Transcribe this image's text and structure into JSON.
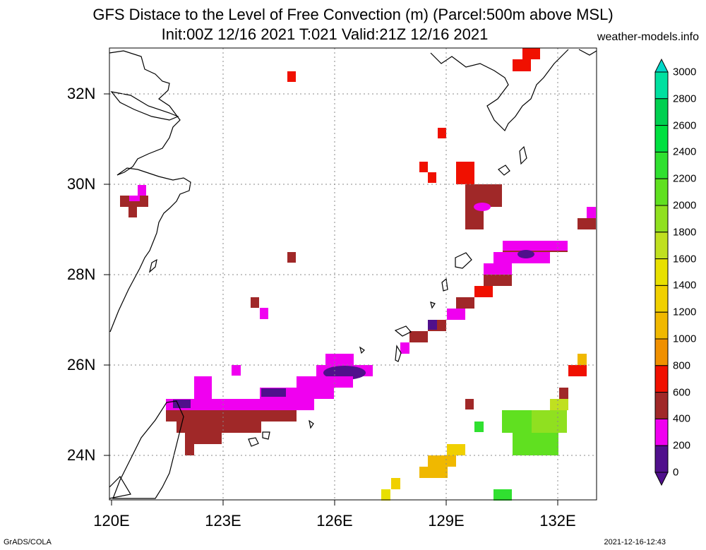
{
  "header": {
    "title_line1": "GFS Distace to the Level of Free Convection (m) (Parcel:500m above MSL)",
    "title_line2": "Init:00Z 12/16 2021 T:021 Valid:21Z 12/16 2021",
    "credit": "weather-models.info"
  },
  "footer": {
    "left": "GrADS/COLA",
    "right": "2021-12-16-12:43"
  },
  "axes": {
    "x_ticks": [
      "120E",
      "123E",
      "126E",
      "129E",
      "132E"
    ],
    "y_ticks": [
      "32N",
      "30N",
      "28N",
      "26N",
      "24N"
    ]
  },
  "colorbar": {
    "labels": [
      "3000",
      "2800",
      "2600",
      "2400",
      "2200",
      "2000",
      "1800",
      "1600",
      "1400",
      "1200",
      "1000",
      "800",
      "600",
      "400",
      "200",
      "0"
    ],
    "colors": [
      "#00d8c8",
      "#00e0a0",
      "#00d050",
      "#00e040",
      "#30e030",
      "#60e020",
      "#90e020",
      "#c0e020",
      "#e8e000",
      "#f0d000",
      "#f0b800",
      "#f09000",
      "#f01000",
      "#a02828",
      "#f000f0",
      "#50108c"
    ]
  }
}
